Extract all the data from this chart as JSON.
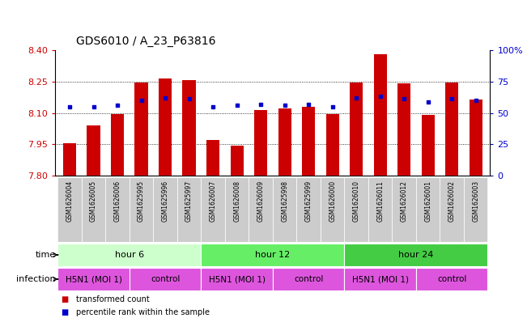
{
  "title": "GDS6010 / A_23_P63816",
  "samples": [
    "GSM1626004",
    "GSM1626005",
    "GSM1626006",
    "GSM1625995",
    "GSM1625996",
    "GSM1625997",
    "GSM1626007",
    "GSM1626008",
    "GSM1626009",
    "GSM1625998",
    "GSM1625999",
    "GSM1626000",
    "GSM1626010",
    "GSM1626011",
    "GSM1626012",
    "GSM1626001",
    "GSM1626002",
    "GSM1626003"
  ],
  "bar_values": [
    7.955,
    8.04,
    8.095,
    8.245,
    8.265,
    8.255,
    7.97,
    7.945,
    8.115,
    8.12,
    8.13,
    8.095,
    8.245,
    8.38,
    8.24,
    8.09,
    8.245,
    8.165
  ],
  "percentile_values": [
    55,
    55,
    56,
    60,
    62,
    61,
    55,
    56,
    57,
    56,
    57,
    55,
    62,
    63,
    61,
    59,
    61,
    60
  ],
  "y_min": 7.8,
  "y_max": 8.4,
  "y_ticks_left": [
    7.8,
    7.95,
    8.1,
    8.25,
    8.4
  ],
  "y_ticks_right": [
    0,
    25,
    50,
    75,
    100
  ],
  "bar_color": "#cc0000",
  "dot_color": "#0000cc",
  "grid_lines": [
    7.95,
    8.1,
    8.25
  ],
  "time_groups": [
    {
      "label": "hour 6",
      "start": 0,
      "end": 5,
      "color": "#ccffcc"
    },
    {
      "label": "hour 12",
      "start": 6,
      "end": 11,
      "color": "#66ee66"
    },
    {
      "label": "hour 24",
      "start": 12,
      "end": 17,
      "color": "#44cc44"
    }
  ],
  "infection_groups": [
    {
      "label": "H5N1 (MOI 1)",
      "start": 0,
      "end": 2
    },
    {
      "label": "control",
      "start": 3,
      "end": 5
    },
    {
      "label": "H5N1 (MOI 1)",
      "start": 6,
      "end": 8
    },
    {
      "label": "control",
      "start": 9,
      "end": 11
    },
    {
      "label": "H5N1 (MOI 1)",
      "start": 12,
      "end": 14
    },
    {
      "label": "control",
      "start": 15,
      "end": 17
    }
  ],
  "infection_color": "#dd55dd",
  "sample_box_color": "#cccccc",
  "time_label": "time",
  "infection_label": "infection",
  "legend": [
    {
      "label": "transformed count",
      "color": "#cc0000"
    },
    {
      "label": "percentile rank within the sample",
      "color": "#0000cc"
    }
  ],
  "title_fontsize": 10,
  "tick_fontsize": 8,
  "sample_fontsize": 5.5,
  "row_label_fontsize": 8,
  "row_content_fontsize": 8
}
